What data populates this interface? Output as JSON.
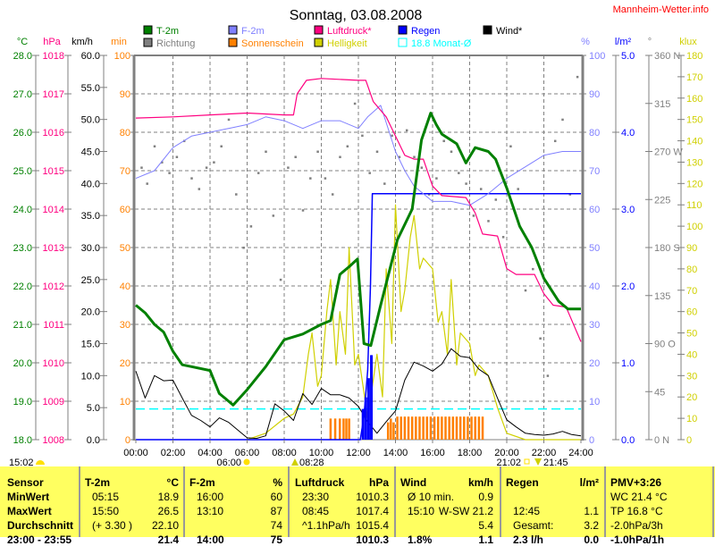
{
  "title": "Sonntag, 03.08.2008",
  "brand": "Mannheim-Wetter.info",
  "colors": {
    "temp": "#008000",
    "humidity": "#8080ff",
    "pressure": "#ff0080",
    "rain": "#0000ff",
    "wind": "#000000",
    "direction": "#808080",
    "sunshine": "#ff8000",
    "brightness": "#d0d000",
    "monthly": "#00ffff",
    "table_bg": "#ffff60"
  },
  "legend": [
    {
      "label": "T-2m",
      "color": "#008000",
      "outline": false
    },
    {
      "label": "F-2m",
      "color": "#8080ff",
      "outline": false
    },
    {
      "label": "Luftdruck*",
      "color": "#ff0080",
      "outline": false
    },
    {
      "label": "Regen",
      "color": "#0000ff",
      "outline": false
    },
    {
      "label": "Wind*",
      "color": "#000000",
      "outline": false
    },
    {
      "label": "Richtung",
      "color": "#808080",
      "outline": false
    },
    {
      "label": "Sonnenschein",
      "color": "#ff8000",
      "outline": false
    },
    {
      "label": "Helligkeit",
      "color": "#d0d000",
      "outline": false
    },
    {
      "label": "18.8 Monat-Ø",
      "color": "#00ffff",
      "outline": true
    }
  ],
  "sun_moon": {
    "now": "15:02",
    "sunrise": "06:00",
    "moonrise": "08:28",
    "sunset": "21:02",
    "moonset": "21:45"
  },
  "chart_data": {
    "type": "line",
    "title": "Sonntag, 03.08.2008",
    "x_ticks": [
      "00:00",
      "02:00",
      "04:00",
      "06:00",
      "08:00",
      "10:00",
      "12:00",
      "14:00",
      "16:00",
      "18:00",
      "20:00",
      "22:00",
      "24:00"
    ],
    "xlim": [
      0,
      24
    ],
    "axes": {
      "celsius": {
        "unit": "°C",
        "range": [
          18,
          28
        ],
        "ticks": [
          "18.0",
          "19.0",
          "20.0",
          "21.0",
          "22.0",
          "23.0",
          "24.0",
          "25.0",
          "26.0",
          "27.0",
          "28.0"
        ]
      },
      "hpa": {
        "unit": "hPa",
        "range": [
          1008,
          1018
        ],
        "ticks": [
          "1008",
          "1009",
          "1010",
          "1011",
          "1012",
          "1013",
          "1014",
          "1015",
          "1016",
          "1017",
          "1018"
        ]
      },
      "kmh": {
        "unit": "km/h",
        "range": [
          0,
          60
        ],
        "ticks": [
          "0.0",
          "5.0",
          "10.0",
          "15.0",
          "20.0",
          "25.0",
          "30.0",
          "35.0",
          "40.0",
          "45.0",
          "50.0",
          "55.0",
          "60.0"
        ]
      },
      "min": {
        "unit": "min",
        "range": [
          0,
          100
        ],
        "ticks": [
          "0",
          "10",
          "20",
          "30",
          "40",
          "50",
          "60",
          "70",
          "80",
          "90",
          "100"
        ]
      },
      "percent": {
        "unit": "%",
        "range": [
          0,
          100
        ],
        "ticks": [
          "0",
          "10",
          "20",
          "30",
          "40",
          "50",
          "60",
          "70",
          "80",
          "90",
          "100"
        ]
      },
      "rain": {
        "unit": "l/m²",
        "range": [
          0,
          5
        ],
        "ticks": [
          "0.0",
          "1.0",
          "2.0",
          "3.0",
          "4.0",
          "5.0"
        ]
      },
      "degree": {
        "unit": "°",
        "range": [
          0,
          360
        ],
        "ticks": [
          "0  N",
          "45",
          "90  O",
          "135",
          "180 S",
          "225",
          "270 W",
          "315",
          "360 N"
        ]
      },
      "klux": {
        "unit": "klux",
        "range": [
          0,
          180
        ],
        "ticks": [
          "0",
          "10",
          "20",
          "30",
          "40",
          "50",
          "60",
          "70",
          "80",
          "90",
          "100",
          "110",
          "120",
          "130",
          "140",
          "150",
          "160",
          "170",
          "180"
        ]
      }
    },
    "series": [
      {
        "name": "T-2m",
        "axis": "celsius",
        "x": [
          0,
          0.5,
          1,
          1.5,
          2,
          2.5,
          3,
          4,
          4.5,
          5,
          5.25,
          6,
          6.5,
          7,
          8,
          9,
          10,
          10.5,
          11,
          11.5,
          11.95,
          12.3,
          12.67,
          13.2,
          14.1,
          14.9,
          15.4,
          15.9,
          16.2,
          16.5,
          17.3,
          17.8,
          18.3,
          19,
          19.4,
          20,
          20.7,
          21.35,
          22,
          22.8,
          23.3,
          24
        ],
        "values": [
          21.5,
          21.3,
          21.0,
          20.8,
          20.3,
          19.95,
          19.9,
          19.8,
          19.2,
          19.0,
          18.9,
          19.3,
          19.6,
          19.9,
          20.6,
          20.75,
          21.0,
          21.1,
          22.3,
          22.5,
          22.7,
          20.5,
          20.45,
          21.5,
          23.2,
          24.0,
          25.8,
          26.5,
          26.2,
          25.95,
          25.7,
          25.2,
          25.6,
          25.5,
          25.3,
          24.55,
          23.55,
          23.0,
          22.2,
          21.6,
          21.4,
          21.4
        ]
      },
      {
        "name": "F-2m",
        "axis": "percent",
        "x": [
          0,
          1,
          2,
          3,
          4,
          5,
          6,
          7,
          8,
          9,
          10,
          11,
          12,
          12.5,
          13.2,
          14,
          14.5,
          15,
          16,
          17,
          18,
          19,
          20,
          21,
          22,
          23,
          24
        ],
        "values": [
          68,
          70,
          76,
          79,
          80,
          81,
          82,
          84,
          83,
          81,
          83,
          83,
          81,
          84,
          87,
          75,
          70,
          66,
          62,
          62,
          61,
          64,
          68,
          71,
          74,
          75,
          75
        ]
      },
      {
        "name": "Luftdruck*",
        "axis": "hpa",
        "x": [
          0,
          2,
          4,
          6,
          8,
          8.5,
          8.7,
          9.2,
          10,
          12,
          12.4,
          12.8,
          13.5,
          14.5,
          15,
          15.5,
          16,
          16.5,
          17.8,
          18.3,
          18.7,
          19.5,
          20,
          20.5,
          21.5,
          22,
          22.5,
          23.2,
          24
        ],
        "values": [
          1016.37,
          1016.4,
          1016.45,
          1016.5,
          1016.45,
          1016.45,
          1017.0,
          1017.35,
          1017.4,
          1017.35,
          1017.35,
          1016.8,
          1016.4,
          1015.4,
          1015.3,
          1015.3,
          1014.6,
          1014.35,
          1014.3,
          1013.9,
          1013.35,
          1013.3,
          1012.45,
          1012.3,
          1012.3,
          1011.8,
          1011.5,
          1011.45,
          1010.55
        ]
      },
      {
        "name": "Wind*",
        "axis": "kmh",
        "x": [
          0,
          0.5,
          1,
          1.5,
          2,
          2.5,
          3,
          3.5,
          4,
          4.5,
          5,
          5.5,
          6,
          6.5,
          7,
          7.5,
          8,
          8.5,
          9,
          9.5,
          10,
          10.5,
          11,
          11.5,
          12,
          12.5,
          13,
          13.5,
          14,
          14.5,
          15,
          15.5,
          16,
          16.5,
          17,
          17.5,
          18,
          18.5,
          19,
          19.5,
          20,
          20.5,
          21,
          21.5,
          22,
          22.5,
          23,
          23.5,
          24
        ],
        "values": [
          10.7,
          6.5,
          10,
          9.2,
          9.3,
          6.5,
          3.8,
          3.0,
          2.0,
          3.4,
          2.7,
          1.5,
          0.3,
          0.2,
          0.6,
          5.6,
          4.5,
          3.0,
          7.2,
          5.5,
          8.0,
          7.0,
          7.0,
          6.5,
          5.2,
          2.8,
          1.0,
          2.8,
          4.5,
          9.3,
          12.1,
          11.5,
          10.7,
          11.8,
          14.2,
          13.0,
          12.8,
          11.0,
          10.0,
          6.5,
          3.1,
          2.0,
          1.0,
          0.8,
          0.7,
          0.9,
          1.3,
          0.8,
          0.6
        ]
      },
      {
        "name": "Helligkeit",
        "axis": "klux",
        "x": [
          6,
          7,
          8,
          8.5,
          9,
          9.3,
          9.5,
          9.8,
          10,
          10.3,
          10.5,
          10.8,
          11,
          11.3,
          11.5,
          11.8,
          12,
          12.5,
          13,
          13.3,
          13.5,
          13.8,
          14,
          14.3,
          14.5,
          14.8,
          15,
          15.3,
          15.5,
          16,
          16.3,
          16.5,
          16.8,
          17,
          17.3,
          17.5,
          18,
          18.3,
          18.5,
          19,
          19.5,
          20,
          21,
          24
        ],
        "values": [
          0,
          3,
          10,
          12,
          20,
          40,
          50,
          25,
          30,
          60,
          75,
          35,
          60,
          40,
          90,
          35,
          40,
          10,
          40,
          20,
          80,
          45,
          110,
          60,
          70,
          95,
          105,
          80,
          85,
          80,
          55,
          60,
          40,
          75,
          35,
          50,
          45,
          30,
          35,
          30,
          15,
          3,
          0,
          0
        ]
      },
      {
        "name": "Regen",
        "axis": "rain",
        "type": "bar",
        "x": [
          12.25,
          12.4,
          12.55,
          12.7
        ],
        "values": [
          0.4,
          0.55,
          0.8,
          1.1
        ]
      },
      {
        "name": "Regen kumuliert",
        "axis": "rain",
        "x": [
          0,
          12.1,
          12.3,
          12.5,
          12.65,
          12.75,
          24
        ],
        "values": [
          0,
          0,
          0.3,
          0.9,
          2.0,
          3.2,
          3.2
        ]
      },
      {
        "name": "Sonnenschein",
        "axis": "min",
        "type": "bar",
        "x": [
          10.5,
          10.75,
          11.0,
          11.2,
          11.35,
          11.5,
          13.6,
          13.75,
          13.9,
          14.1,
          14.3,
          14.5,
          14.7,
          14.9,
          15.1,
          15.3,
          15.5,
          15.7,
          15.9,
          16.1,
          16.3,
          16.5,
          16.7,
          16.9,
          17.1,
          17.3,
          17.5,
          17.7,
          17.9,
          18.1,
          18.3,
          18.5,
          18.7
        ],
        "values": [
          5.5,
          5.5,
          5.5,
          5.5,
          5.5,
          5.5,
          4.5,
          5.5,
          4.5,
          6,
          6,
          6,
          6,
          6,
          6,
          6,
          6,
          6,
          6,
          6,
          6,
          6,
          6,
          6,
          6,
          6,
          6,
          6,
          6,
          6,
          6,
          6,
          6
        ]
      },
      {
        "name": "Richtung",
        "axis": "degree",
        "type": "scatter",
        "x": [
          0.3,
          0.6,
          1,
          1.4,
          1.8,
          2.2,
          2.6,
          3,
          3.4,
          3.8,
          4.2,
          4.6,
          5,
          5.4,
          5.8,
          6.2,
          6.6,
          7,
          7.4,
          7.8,
          8.2,
          8.6,
          9,
          9.4,
          9.8,
          10.2,
          10.6,
          11,
          11.4,
          11.8,
          12.2,
          12.6,
          13,
          13.4,
          13.8,
          14.2,
          14.6,
          15,
          15.4,
          15.8,
          16.2,
          16.6,
          17,
          17.4,
          17.8,
          18.2,
          18.6,
          19,
          19.4,
          19.8,
          20.2,
          20.6,
          21,
          21.4,
          21.8,
          22.2,
          22.6,
          23,
          23.4,
          23.8
        ],
        "values": [
          255,
          240,
          275,
          260,
          250,
          265,
          280,
          245,
          235,
          255,
          260,
          275,
          300,
          230,
          180,
          200,
          250,
          270,
          210,
          150,
          255,
          265,
          215,
          245,
          270,
          245,
          230,
          265,
          275,
          315,
          285,
          250,
          270,
          240,
          285,
          265,
          290,
          265,
          255,
          230,
          245,
          280,
          270,
          250,
          240,
          210,
          235,
          205,
          225,
          190,
          275,
          235,
          140,
          160,
          95,
          60,
          280,
          300,
          230,
          340
        ]
      },
      {
        "name": "18.8 Monat-Ø",
        "axis": "celsius",
        "type": "reference",
        "value": 18.8
      }
    ]
  },
  "table": {
    "headers": [
      {
        "label": "Sensor",
        "unit": ""
      },
      {
        "label": "T-2m",
        "unit": "°C"
      },
      {
        "label": "F-2m",
        "unit": "%"
      },
      {
        "label": "Luftdruck",
        "unit": "hPa"
      },
      {
        "label": "Wind",
        "unit": "km/h"
      },
      {
        "label": "Regen",
        "unit": "l/m²"
      },
      {
        "label": "PMV+3:26",
        "unit": ""
      }
    ],
    "rows": [
      {
        "label": "MinWert",
        "cells": [
          [
            "05:15",
            "18.9"
          ],
          [
            "16:00",
            "60"
          ],
          [
            "23:30",
            "1010.3"
          ],
          [
            "Ø 10 min.",
            "0.9"
          ],
          [
            "",
            ""
          ],
          [
            "WC 21.4 °C",
            ""
          ]
        ]
      },
      {
        "label": "MaxWert",
        "cells": [
          [
            "15:50",
            "26.5"
          ],
          [
            "13:10",
            "87"
          ],
          [
            "08:45",
            "1017.4"
          ],
          [
            "15:10",
            "W-SW 21.2"
          ],
          [
            "12:45",
            "1.1"
          ],
          [
            "TP 16.8 °C",
            ""
          ]
        ]
      },
      {
        "label": "Durchschnitt",
        "cells": [
          [
            "(+ 3.30 )",
            "22.10"
          ],
          [
            "",
            "74"
          ],
          [
            "^1.1hPa/h",
            "1015.4"
          ],
          [
            "",
            "5.4"
          ],
          [
            "Gesamt:",
            "3.2"
          ],
          [
            "-2.0hPa/3h",
            ""
          ]
        ]
      },
      {
        "label": "23:00 - 23:55",
        "cells": [
          [
            "",
            "21.4"
          ],
          [
            "14:00",
            "75"
          ],
          [
            "",
            "1010.3"
          ],
          [
            "1.8%",
            "1.1"
          ],
          [
            "2.3 l/h",
            "0.0"
          ],
          [
            "-1.0hPa/1h",
            ""
          ]
        ]
      }
    ]
  }
}
